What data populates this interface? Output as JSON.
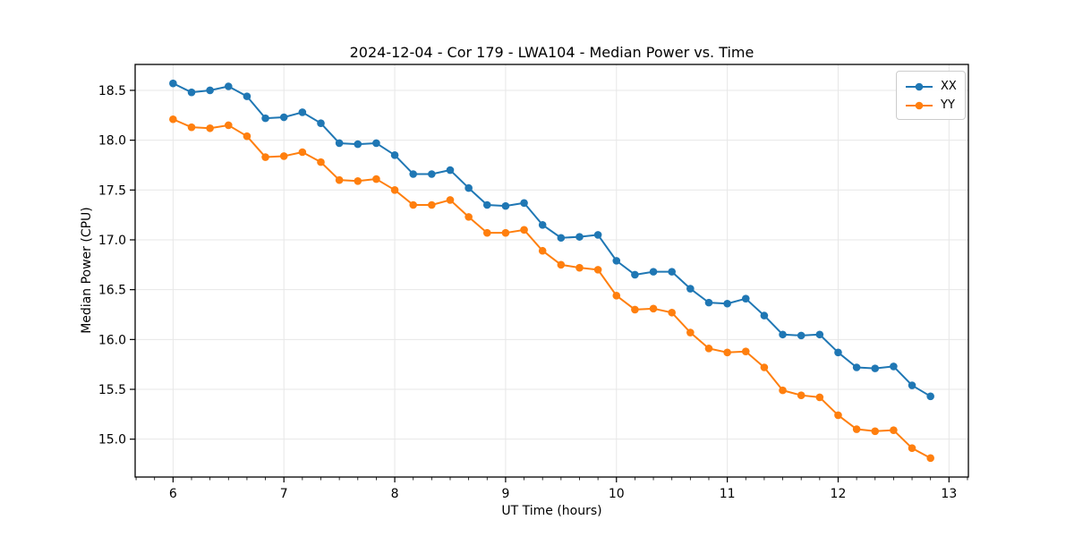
{
  "chart_data": {
    "type": "line",
    "title": "2024-12-04 - Cor 179 - LWA104 - Median Power vs. Time",
    "xlabel": "UT Time (hours)",
    "ylabel": "Median Power (CPU)",
    "xlim": [
      5.658,
      13.175
    ],
    "ylim": [
      14.62,
      18.76
    ],
    "xticks": [
      6,
      7,
      8,
      9,
      10,
      11,
      12,
      13
    ],
    "yticks": [
      15.0,
      15.5,
      16.0,
      16.5,
      17.0,
      17.5,
      18.0,
      18.5
    ],
    "x_minor_step": 0.166667,
    "grid": "major",
    "grid_color": "#e7e7e7",
    "frame_color": "#000000",
    "legend_position": "upper-right",
    "x": [
      6.0,
      6.1667,
      6.3333,
      6.5,
      6.6667,
      6.8333,
      7.0,
      7.1667,
      7.3333,
      7.5,
      7.6667,
      7.8333,
      8.0,
      8.1667,
      8.3333,
      8.5,
      8.6667,
      8.8333,
      9.0,
      9.1667,
      9.3333,
      9.5,
      9.6667,
      9.8333,
      10.0,
      10.1667,
      10.3333,
      10.5,
      10.6667,
      10.8333,
      11.0,
      11.1667,
      11.3333,
      11.5,
      11.6667,
      11.8333,
      12.0,
      12.1667,
      12.3333,
      12.5,
      12.6667,
      12.8333
    ],
    "series": [
      {
        "name": "XX",
        "color": "#1f77b4",
        "values": [
          18.57,
          18.48,
          18.5,
          18.54,
          18.44,
          18.22,
          18.23,
          18.28,
          18.17,
          17.97,
          17.96,
          17.97,
          17.85,
          17.66,
          17.66,
          17.7,
          17.52,
          17.35,
          17.34,
          17.37,
          17.15,
          17.02,
          17.03,
          17.05,
          16.79,
          16.65,
          16.68,
          16.68,
          16.51,
          16.37,
          16.36,
          16.41,
          16.24,
          16.05,
          16.04,
          16.05,
          15.87,
          15.72,
          15.71,
          15.73,
          15.54,
          15.43
        ]
      },
      {
        "name": "YY",
        "color": "#ff7f0e",
        "values": [
          18.21,
          18.13,
          18.12,
          18.15,
          18.04,
          17.83,
          17.84,
          17.88,
          17.78,
          17.6,
          17.59,
          17.61,
          17.5,
          17.35,
          17.35,
          17.4,
          17.23,
          17.07,
          17.07,
          17.1,
          16.89,
          16.75,
          16.72,
          16.7,
          16.44,
          16.3,
          16.31,
          16.27,
          16.07,
          15.91,
          15.87,
          15.88,
          15.72,
          15.49,
          15.44,
          15.42,
          15.24,
          15.1,
          15.08,
          15.09,
          14.91,
          14.81
        ]
      }
    ]
  }
}
